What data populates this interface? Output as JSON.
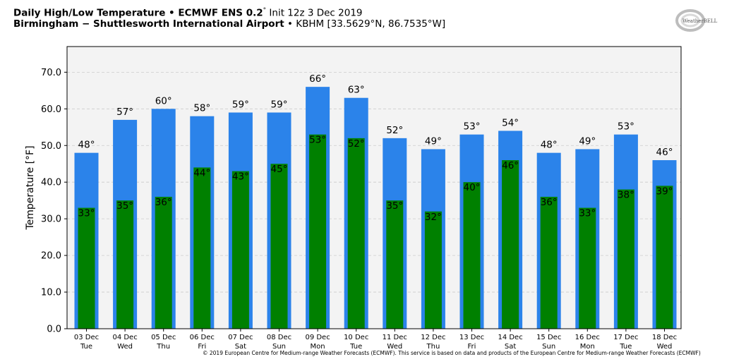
{
  "header": {
    "title_bold": "Daily High/Low Temperature • ECMWF ENS 0.2",
    "title_deg": "°",
    "title_rest": " Init 12z 3 Dec 2019",
    "location_bold": "Birmingham − Shuttlesworth International Airport",
    "location_rest": " • KBHM [33.5629°N, 86.7535°W]"
  },
  "logo": {
    "text": "WeatherBELL",
    "icon": "weatherbell-logo-icon"
  },
  "copyright": "© 2019 European Centre for Medium-range Weather Forecasts (ECMWF). This service is based on data and products of the European Centre for Medium-range Weather Forecasts (ECMWF)",
  "colors": {
    "high": "#2b83ea",
    "low": "#008000",
    "plot_bg": "#f3f3f3",
    "grid": "#cccccc"
  },
  "chart_data": {
    "type": "bar",
    "ylabel": "Temperature [°F]",
    "ylim": [
      0,
      77
    ],
    "yticks": [
      "0.0",
      "10.0",
      "20.0",
      "30.0",
      "40.0",
      "50.0",
      "60.0",
      "70.0"
    ],
    "ytick_values": [
      0,
      10,
      20,
      30,
      40,
      50,
      60,
      70
    ],
    "grid": true,
    "categories": [
      [
        "03 Dec",
        "Tue"
      ],
      [
        "04 Dec",
        "Wed"
      ],
      [
        "05 Dec",
        "Thu"
      ],
      [
        "06 Dec",
        "Fri"
      ],
      [
        "07 Dec",
        "Sat"
      ],
      [
        "08 Dec",
        "Sun"
      ],
      [
        "09 Dec",
        "Mon"
      ],
      [
        "10 Dec",
        "Tue"
      ],
      [
        "11 Dec",
        "Wed"
      ],
      [
        "12 Dec",
        "Thu"
      ],
      [
        "13 Dec",
        "Fri"
      ],
      [
        "14 Dec",
        "Sat"
      ],
      [
        "15 Dec",
        "Sun"
      ],
      [
        "16 Dec",
        "Mon"
      ],
      [
        "17 Dec",
        "Tue"
      ],
      [
        "18 Dec",
        "Wed"
      ]
    ],
    "series": [
      {
        "values": [
          48,
          57,
          60,
          58,
          59,
          59,
          66,
          63,
          52,
          49,
          53,
          54,
          48,
          49,
          53,
          46
        ],
        "labels": [
          "48°",
          "57°",
          "60°",
          "58°",
          "59°",
          "59°",
          "66°",
          "63°",
          "52°",
          "49°",
          "53°",
          "54°",
          "48°",
          "49°",
          "53°",
          "46°"
        ]
      },
      {
        "values": [
          33,
          35,
          36,
          44,
          43,
          45,
          53,
          52,
          35,
          32,
          40,
          46,
          36,
          33,
          38,
          39
        ],
        "labels": [
          "33°",
          "35°",
          "36°",
          "44°",
          "43°",
          "45°",
          "53°",
          "52°",
          "35°",
          "32°",
          "40°",
          "46°",
          "36°",
          "33°",
          "38°",
          "39°"
        ]
      }
    ]
  }
}
